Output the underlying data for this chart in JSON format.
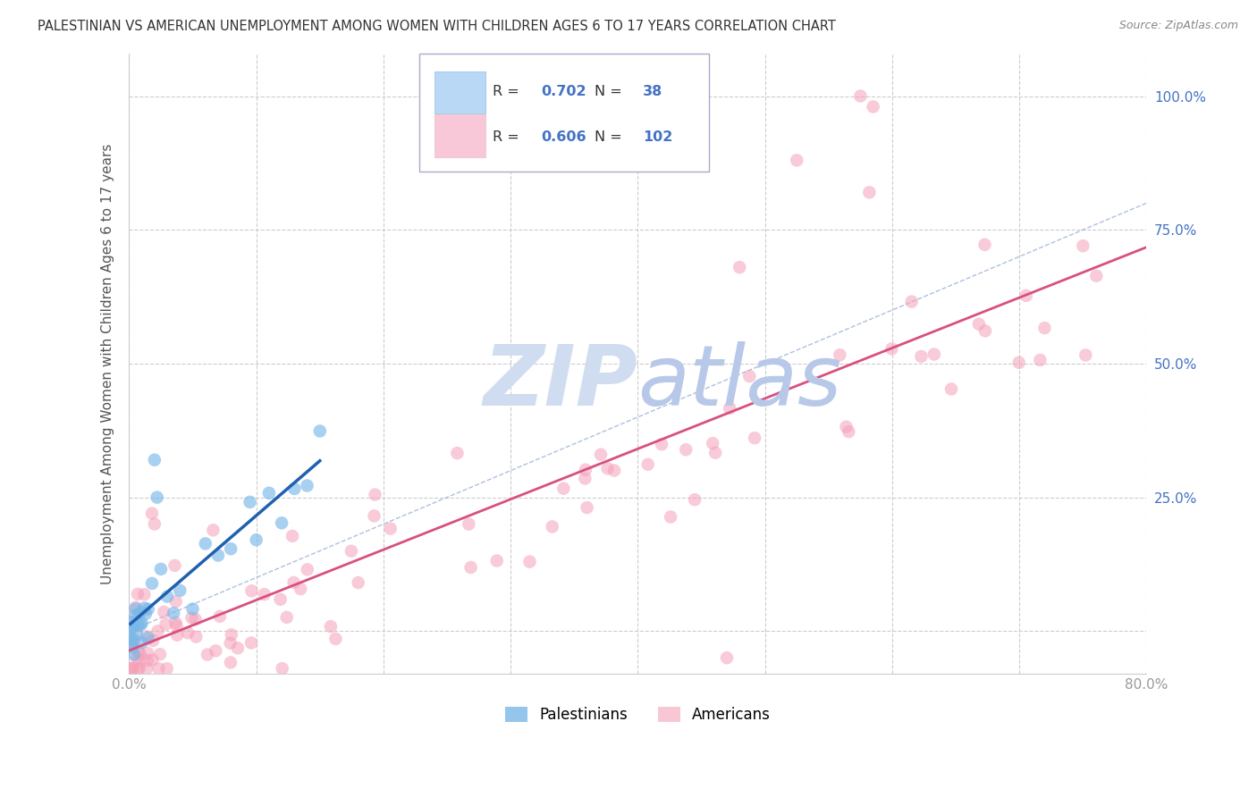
{
  "title": "PALESTINIAN VS AMERICAN UNEMPLOYMENT AMONG WOMEN WITH CHILDREN AGES 6 TO 17 YEARS CORRELATION CHART",
  "source": "Source: ZipAtlas.com",
  "ylabel": "Unemployment Among Women with Children Ages 6 to 17 years",
  "xlim": [
    0.0,
    0.8
  ],
  "ylim": [
    -0.08,
    1.08
  ],
  "xticks": [
    0.0,
    0.1,
    0.2,
    0.3,
    0.4,
    0.5,
    0.6,
    0.7,
    0.8
  ],
  "yticks": [
    0.0,
    0.25,
    0.5,
    0.75,
    1.0
  ],
  "yticklabels_right": [
    "",
    "25.0%",
    "50.0%",
    "75.0%",
    "100.0%"
  ],
  "pal_R": 0.702,
  "pal_N": 38,
  "ame_R": 0.606,
  "ame_N": 102,
  "blue_color": "#7ab8e8",
  "blue_line_color": "#2060b0",
  "pink_color": "#f5a0b8",
  "pink_line_color": "#d85080",
  "legend_blue_fill": "#b8d8f5",
  "legend_pink_fill": "#f8c8d8",
  "watermark_zip": "ZIP",
  "watermark_atlas": "atlas",
  "watermark_color_zip": "#d0ddf0",
  "watermark_color_atlas": "#b8c8e8",
  "grid_color": "#cccccc",
  "diag_color": "#9ab0d8",
  "title_color": "#333333",
  "axis_label_color": "#555555",
  "tick_color": "#999999",
  "right_tick_color": "#4472c4",
  "source_color": "#888888",
  "legend_text_color": "#333333",
  "legend_val_color": "#4472c4"
}
